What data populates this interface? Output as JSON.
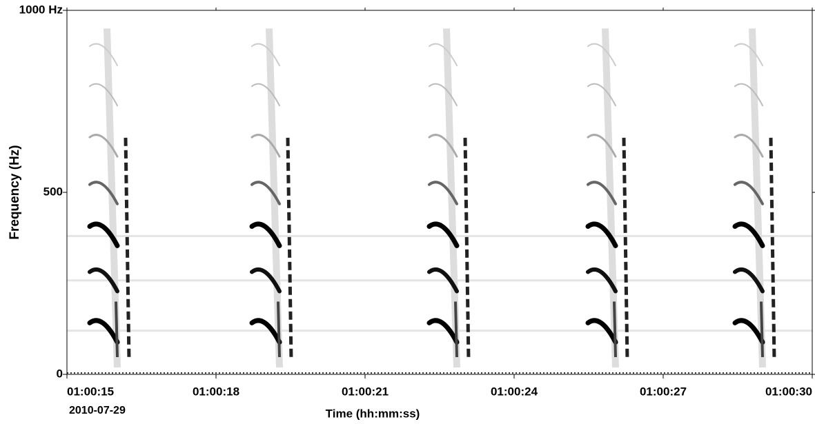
{
  "chart_data": {
    "type": "spectrogram",
    "y_label": "Frequency (Hz)",
    "x_label": "Time (hh:mm:ss)",
    "date": "2010-07-29",
    "ylim": [
      0,
      1000
    ],
    "yticks": [
      0,
      500,
      {
        "value": 1000,
        "label": "1000 Hz"
      }
    ],
    "xlim": [
      "01:00:15",
      "01:00:30"
    ],
    "xticks": [
      "01:00:15",
      "01:00:18",
      "01:00:21",
      "01:00:24",
      "01:00:27",
      "01:00:30"
    ],
    "colormap": "gray"
  }
}
